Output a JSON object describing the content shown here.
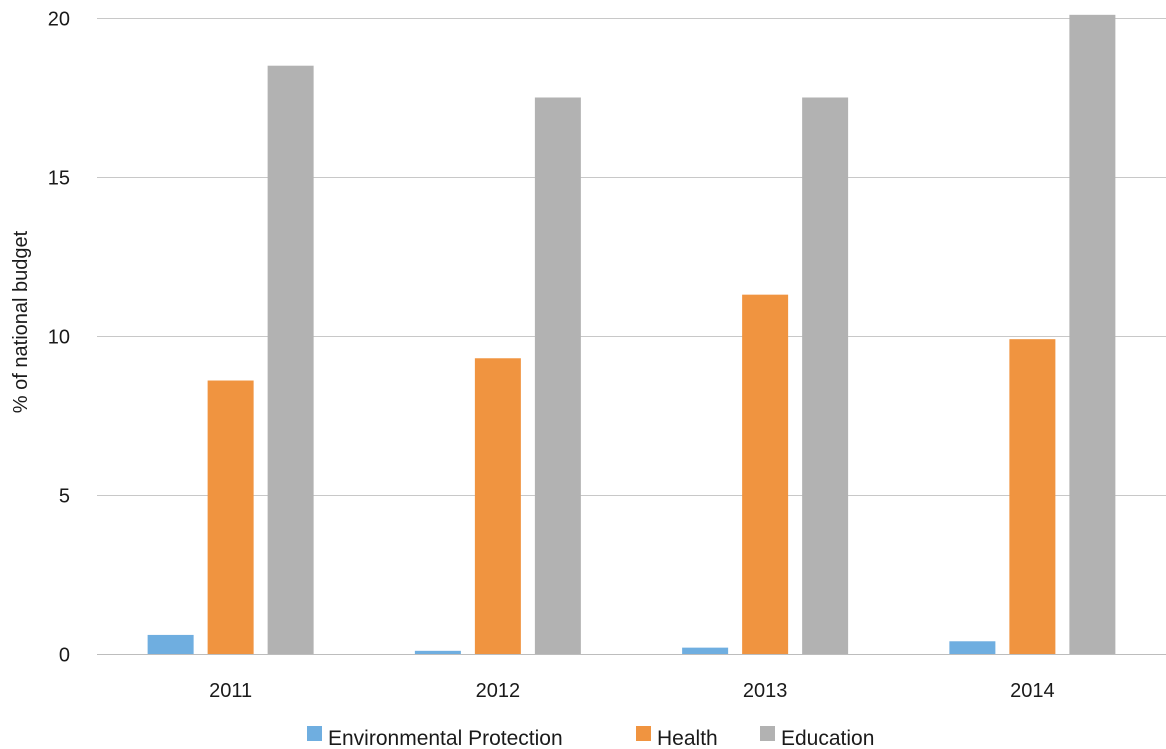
{
  "chart_data": {
    "type": "bar",
    "ylabel": "% of national budget",
    "ylim": [
      0,
      20
    ],
    "yticks": [
      0,
      5,
      10,
      15,
      20
    ],
    "grid": true,
    "legend_position": "bottom",
    "categories": [
      "2011",
      "2012",
      "2013",
      "2014"
    ],
    "series": [
      {
        "name": "Environmental Protection",
        "color": "#6faee0",
        "values": [
          0.6,
          0.1,
          0.2,
          0.4
        ]
      },
      {
        "name": "Health",
        "color": "#f09440",
        "values": [
          8.6,
          9.3,
          11.3,
          9.9
        ]
      },
      {
        "name": "Education",
        "color": "#b2b2b2",
        "values": [
          18.5,
          17.5,
          17.5,
          20.1
        ]
      }
    ]
  }
}
